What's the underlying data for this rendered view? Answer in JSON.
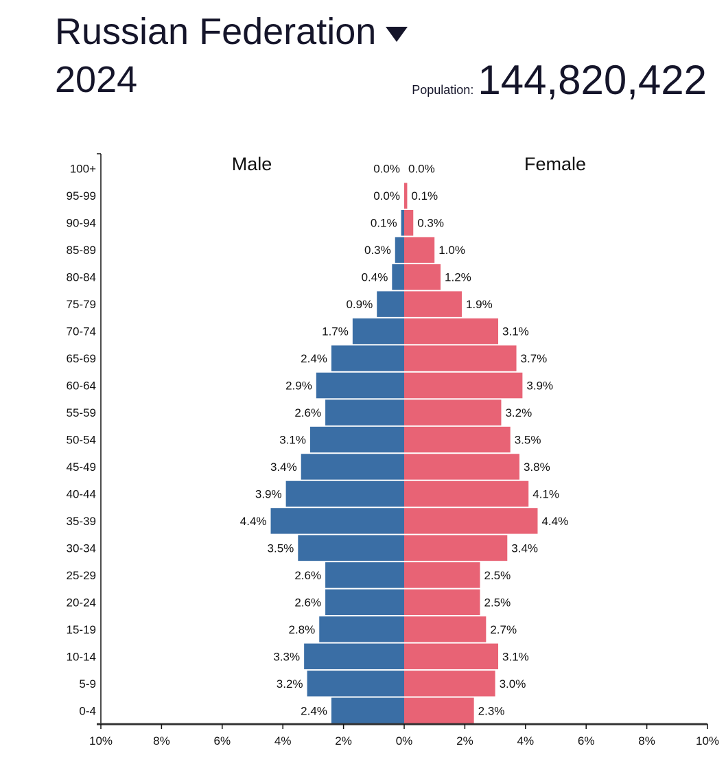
{
  "header": {
    "country": "Russian Federation",
    "country_dropdown_icon": "caret-down-icon",
    "year": "2024",
    "population_label": "Population:",
    "population_value": "144,820,422"
  },
  "colors": {
    "male": "#3a6ea5",
    "female": "#e86375",
    "text": "#15152a"
  },
  "chart_data": {
    "type": "bar",
    "orientation": "horizontal population pyramid",
    "categories": [
      "100+",
      "95-99",
      "90-94",
      "85-89",
      "80-84",
      "75-79",
      "70-74",
      "65-69",
      "60-64",
      "55-59",
      "50-54",
      "45-49",
      "40-44",
      "35-39",
      "30-34",
      "25-29",
      "20-24",
      "15-19",
      "10-14",
      "5-9",
      "0-4"
    ],
    "series": [
      {
        "name": "Male",
        "values": [
          0.0,
          0.0,
          0.1,
          0.3,
          0.4,
          0.9,
          1.7,
          2.4,
          2.9,
          2.6,
          3.1,
          3.4,
          3.9,
          4.4,
          3.5,
          2.6,
          2.6,
          2.8,
          3.3,
          3.2,
          2.4
        ]
      },
      {
        "name": "Female",
        "values": [
          0.0,
          0.1,
          0.3,
          1.0,
          1.2,
          1.9,
          3.1,
          3.7,
          3.9,
          3.2,
          3.5,
          3.8,
          4.1,
          4.4,
          3.4,
          2.5,
          2.5,
          2.7,
          3.1,
          3.0,
          2.3
        ]
      }
    ],
    "xlim": [
      -10,
      10
    ],
    "xticks": [
      "10%",
      "8%",
      "6%",
      "4%",
      "2%",
      "0%",
      "2%",
      "4%",
      "6%",
      "8%",
      "10%"
    ],
    "value_suffix": "%",
    "grid": false
  }
}
